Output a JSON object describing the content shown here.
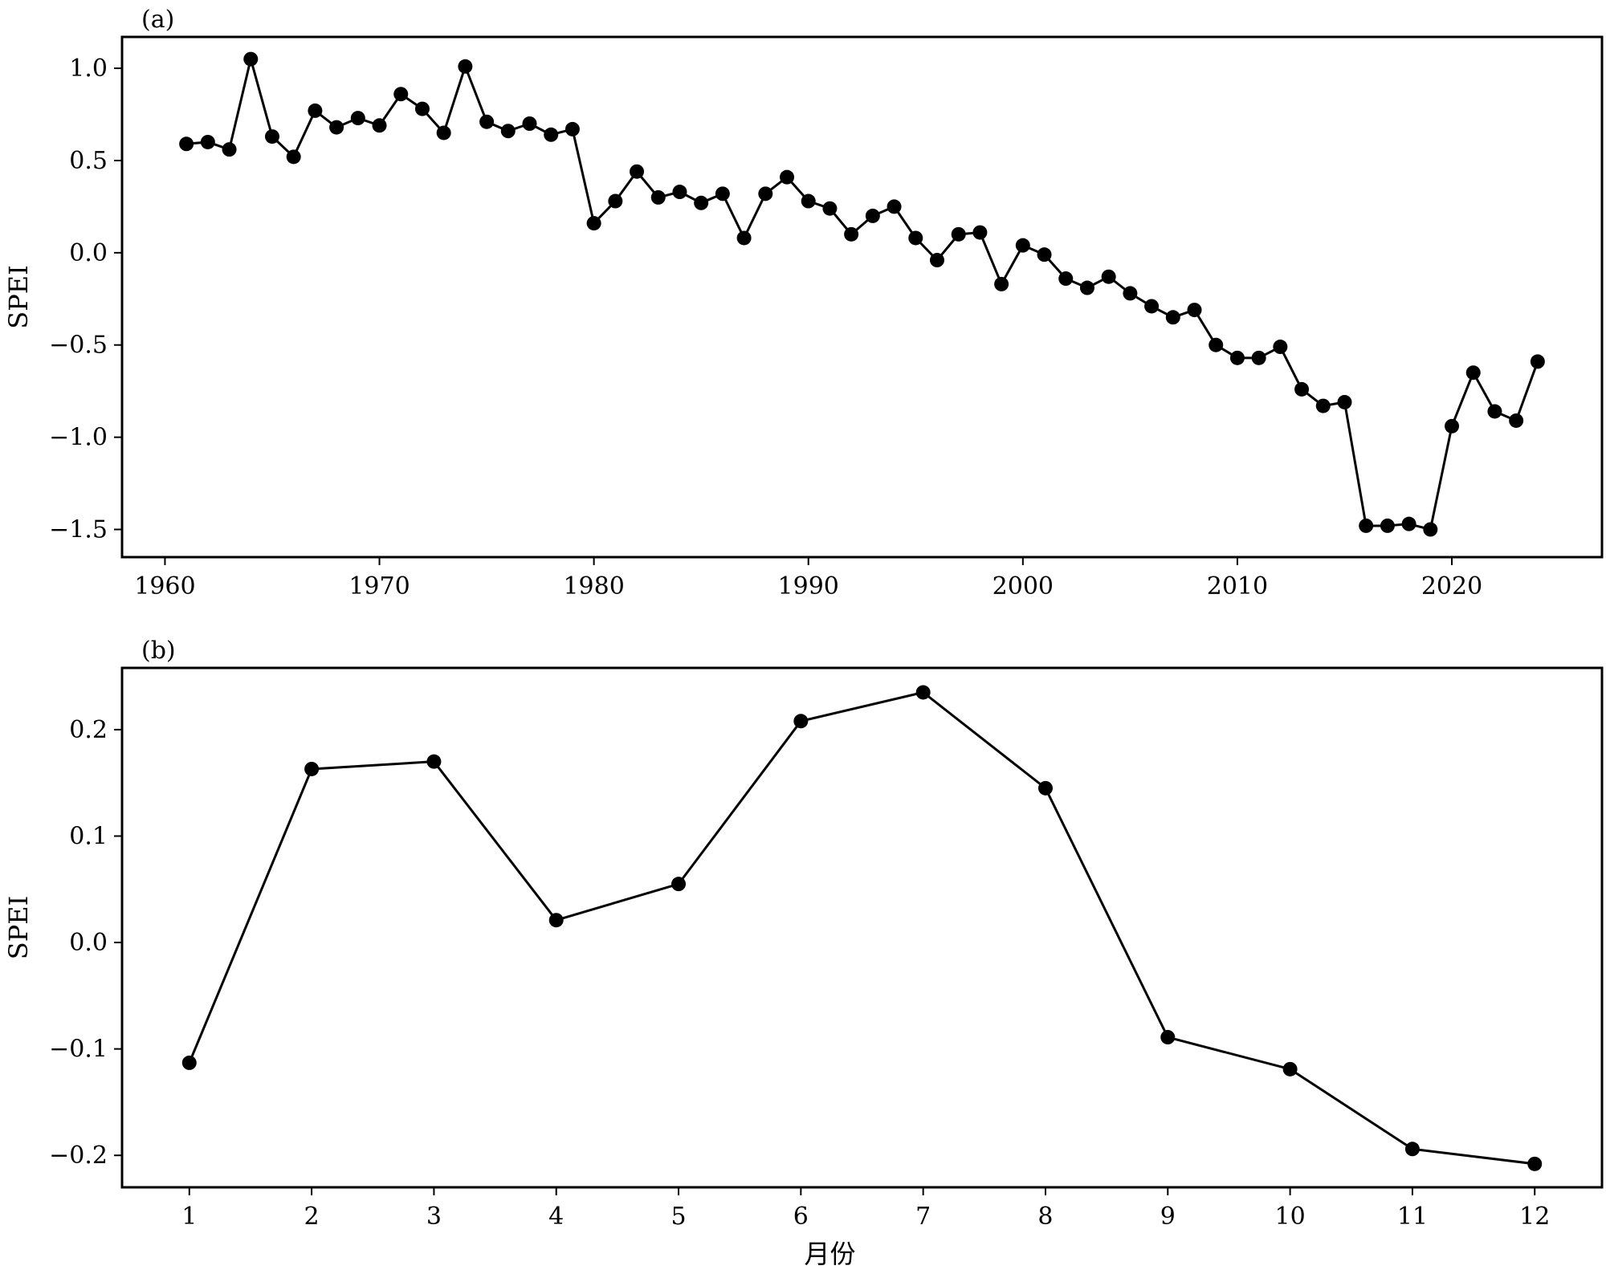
{
  "chart_data": [
    {
      "type": "line",
      "panel_label": "(a)",
      "xlabel": "",
      "ylabel": "SPEI",
      "xlim": [
        1958,
        2027
      ],
      "ylim": [
        -1.65,
        1.17
      ],
      "x_ticks": [
        1960,
        1970,
        1980,
        1990,
        2000,
        2010,
        2020
      ],
      "x_tick_labels": [
        "1960",
        "1970",
        "1980",
        "1990",
        "2000",
        "2010",
        "2020"
      ],
      "y_ticks": [
        -1.5,
        -1.0,
        -0.5,
        0.0,
        0.5,
        1.0
      ],
      "y_tick_labels": [
        "−1.5",
        "−1.0",
        "−0.5",
        "0.0",
        "0.5",
        "1.0"
      ],
      "grid": false,
      "line_color": "#000000",
      "marker": "circle",
      "series": [
        {
          "x": [
            1961,
            1962,
            1963,
            1964,
            1965,
            1966,
            1967,
            1968,
            1969,
            1970,
            1971,
            1972,
            1973,
            1974,
            1975,
            1976,
            1977,
            1978,
            1979,
            1980,
            1981,
            1982,
            1983,
            1984,
            1985,
            1986,
            1987,
            1988,
            1989,
            1990,
            1991,
            1992,
            1993,
            1994,
            1995,
            1996,
            1997,
            1998,
            1999,
            2000,
            2001,
            2002,
            2003,
            2004,
            2005,
            2006,
            2007,
            2008,
            2009,
            2010,
            2011,
            2012,
            2013,
            2014,
            2015,
            2016,
            2017,
            2018,
            2019,
            2020,
            2021,
            2022,
            2023,
            2024
          ],
          "y": [
            0.59,
            0.6,
            0.56,
            1.05,
            0.63,
            0.52,
            0.77,
            0.68,
            0.73,
            0.69,
            0.86,
            0.78,
            0.65,
            1.01,
            0.71,
            0.66,
            0.7,
            0.64,
            0.67,
            0.16,
            0.28,
            0.44,
            0.3,
            0.33,
            0.27,
            0.32,
            0.08,
            0.32,
            0.41,
            0.28,
            0.24,
            0.1,
            0.2,
            0.25,
            0.08,
            -0.04,
            0.1,
            0.11,
            -0.17,
            0.04,
            -0.01,
            -0.14,
            -0.19,
            -0.13,
            -0.22,
            -0.29,
            -0.35,
            -0.31,
            -0.5,
            -0.57,
            -0.57,
            -0.51,
            -0.74,
            -0.83,
            -0.81,
            -1.48,
            -1.48,
            -1.47,
            -1.5,
            -0.94,
            -0.65,
            -0.86,
            -0.91,
            -0.59
          ]
        }
      ]
    },
    {
      "type": "line",
      "panel_label": "(b)",
      "xlabel": "月份",
      "ylabel": "SPEI",
      "xlim": [
        0.45,
        12.55
      ],
      "ylim": [
        -0.23,
        0.258
      ],
      "x_ticks": [
        1,
        2,
        3,
        4,
        5,
        6,
        7,
        8,
        9,
        10,
        11,
        12
      ],
      "x_tick_labels": [
        "1",
        "2",
        "3",
        "4",
        "5",
        "6",
        "7",
        "8",
        "9",
        "10",
        "11",
        "12"
      ],
      "y_ticks": [
        -0.2,
        -0.1,
        0.0,
        0.1,
        0.2
      ],
      "y_tick_labels": [
        "−0.2",
        "−0.1",
        "0.0",
        "0.1",
        "0.2"
      ],
      "grid": false,
      "line_color": "#000000",
      "marker": "circle",
      "series": [
        {
          "x": [
            1,
            2,
            3,
            4,
            5,
            6,
            7,
            8,
            9,
            10,
            11,
            12
          ],
          "y": [
            -0.113,
            0.163,
            0.17,
            0.021,
            0.055,
            0.208,
            0.235,
            0.145,
            -0.089,
            -0.119,
            -0.194,
            -0.208
          ]
        }
      ]
    }
  ]
}
